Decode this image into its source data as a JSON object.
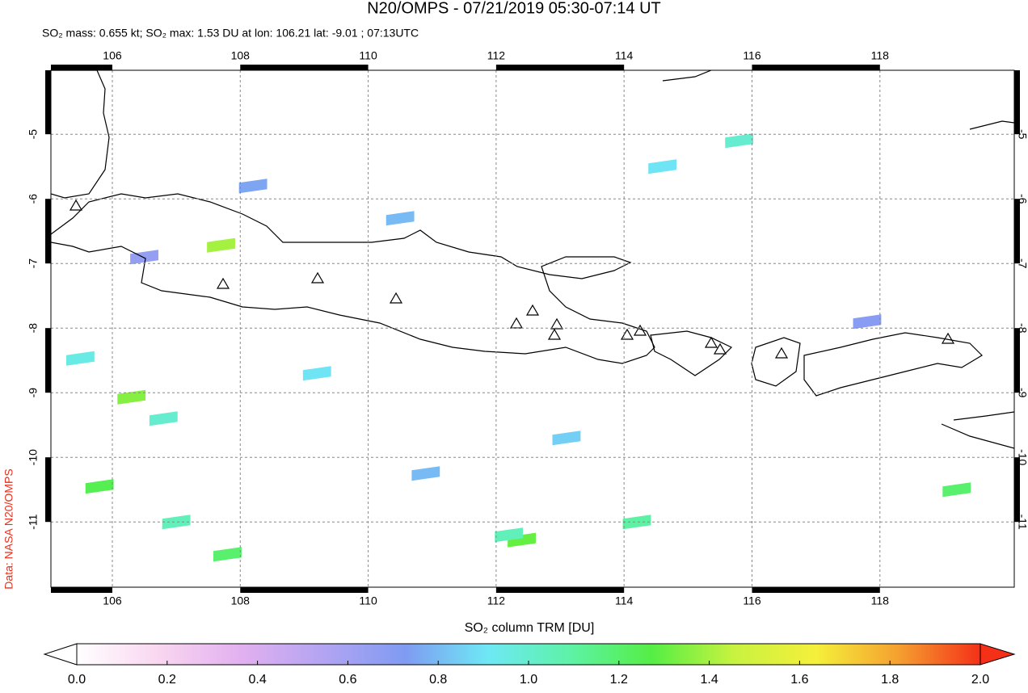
{
  "chart_data": {
    "type": "map",
    "title": "N20/OMPS - 07/21/2019 05:30-07:14 UT",
    "subtitle": "SO₂ mass: 0.655 kt; SO₂ max: 1.53 DU at lon: 106.21 lat: -9.01 ; 07:13UTC",
    "side_label": "Data: NASA N20/OMPS",
    "xlabel": "SO₂ column TRM [DU]",
    "xlim": [
      105.04,
      120.1
    ],
    "ylim": [
      -12.01,
      -4.01
    ],
    "xticks": [
      106,
      108,
      110,
      112,
      114,
      116,
      118
    ],
    "yticks": [
      -5,
      -6,
      -7,
      -8,
      -9,
      -10,
      -11
    ],
    "grid": true,
    "colorbar": {
      "lim": [
        0,
        2
      ],
      "ticks": [
        {
          "value": 0,
          "label": "0.0"
        },
        0.2,
        0.4,
        0.6,
        0.8,
        {
          "value": 1,
          "label": "1.0"
        },
        1.2,
        1.4,
        1.6,
        1.8,
        {
          "value": 2,
          "label": "2.0"
        }
      ],
      "colors": [
        "#ffffff",
        "#f9d6f0",
        "#e2b0f0",
        "#b3a4f2",
        "#7f9bf2",
        "#6ee8f5",
        "#5df2a8",
        "#55ee44",
        "#c8f240",
        "#f5f03a",
        "#f5a030",
        "#f53018"
      ]
    },
    "pixels": [
      {
        "lon": 106.3,
        "lat": -9.07,
        "value": 1.35
      },
      {
        "lon": 107.7,
        "lat": -6.72,
        "value": 1.4
      },
      {
        "lon": 106.8,
        "lat": -9.4,
        "value": 1.0
      },
      {
        "lon": 105.5,
        "lat": -8.47,
        "value": 0.95
      },
      {
        "lon": 105.8,
        "lat": -10.45,
        "value": 1.25
      },
      {
        "lon": 107.0,
        "lat": -11.0,
        "value": 1.05
      },
      {
        "lon": 107.8,
        "lat": -11.5,
        "value": 1.2
      },
      {
        "lon": 112.4,
        "lat": -11.28,
        "value": 1.3
      },
      {
        "lon": 112.2,
        "lat": -11.2,
        "value": 1.05
      },
      {
        "lon": 109.2,
        "lat": -8.7,
        "value": 0.9
      },
      {
        "lon": 110.5,
        "lat": -6.3,
        "value": 0.8
      },
      {
        "lon": 114.6,
        "lat": -5.5,
        "value": 0.9
      },
      {
        "lon": 115.8,
        "lat": -5.1,
        "value": 1.0
      },
      {
        "lon": 114.2,
        "lat": -11.0,
        "value": 1.1
      },
      {
        "lon": 119.2,
        "lat": -10.5,
        "value": 1.2
      },
      {
        "lon": 108.2,
        "lat": -5.8,
        "value": 0.75
      },
      {
        "lon": 106.5,
        "lat": -6.9,
        "value": 0.65
      },
      {
        "lon": 113.1,
        "lat": -9.7,
        "value": 0.85
      },
      {
        "lon": 110.9,
        "lat": -10.25,
        "value": 0.8
      },
      {
        "lon": 117.8,
        "lat": -7.9,
        "value": 0.7
      }
    ]
  }
}
